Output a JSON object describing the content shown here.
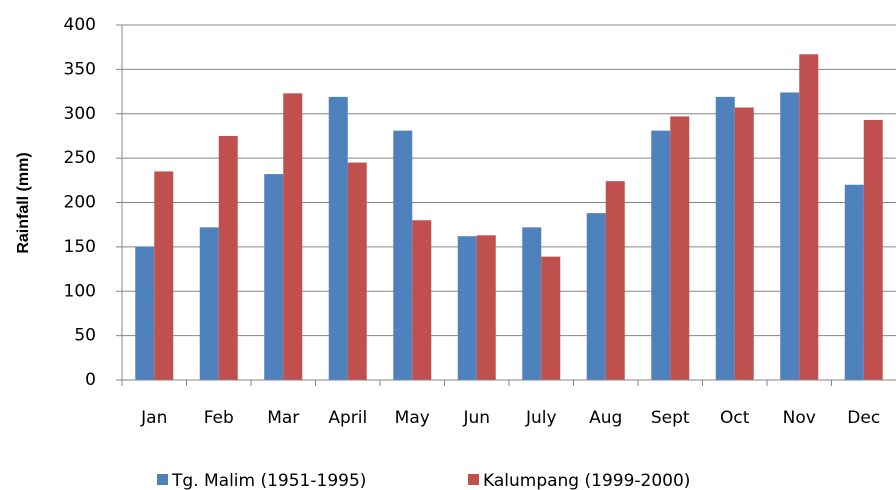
{
  "chart_data": {
    "type": "bar",
    "y_label": "Rainfall (mm)",
    "categories": [
      "Jan",
      "Feb",
      "Mar",
      "April",
      "May",
      "Jun",
      "July",
      "Aug",
      "Sept",
      "Oct",
      "Nov",
      "Dec"
    ],
    "series": [
      {
        "name": "Tg. Malim (1951-1995)",
        "color": "#4f81bd",
        "values": [
          150,
          172,
          232,
          319,
          281,
          162,
          172,
          188,
          281,
          319,
          324,
          220
        ]
      },
      {
        "name": "Kalumpang (1999-2000)",
        "color": "#c0504d",
        "values": [
          235,
          275,
          323,
          245,
          180,
          163,
          139,
          224,
          297,
          307,
          367,
          293
        ]
      }
    ],
    "ylim": [
      0,
      400
    ],
    "yticks": [
      0,
      50,
      100,
      150,
      200,
      250,
      300,
      350,
      400
    ],
    "grid": true
  }
}
